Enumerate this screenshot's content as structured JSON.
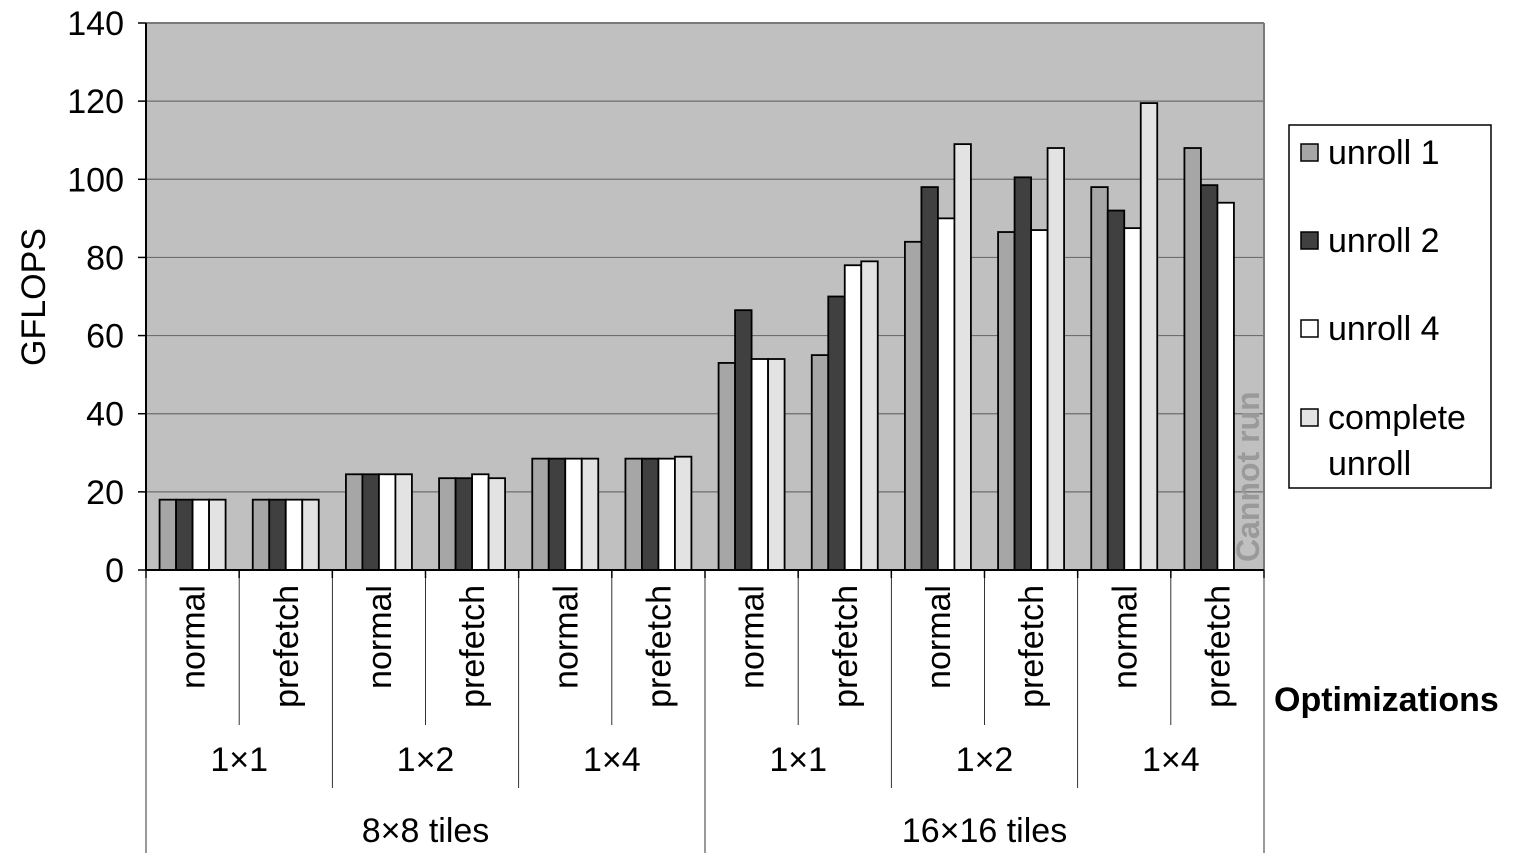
{
  "chart_data": {
    "type": "bar",
    "ylabel": "GFLOPS",
    "xlabel": "Optimizations",
    "ylim": [
      0,
      140
    ],
    "yticks": [
      "0",
      "20",
      "40",
      "60",
      "80",
      "100",
      "120",
      "140"
    ],
    "grid": true,
    "legend_position": "right",
    "categories": [
      {
        "opt": "normal",
        "unroll": "1×1",
        "tile": "8×8 tiles"
      },
      {
        "opt": "prefetch",
        "unroll": "1×1",
        "tile": "8×8 tiles"
      },
      {
        "opt": "normal",
        "unroll": "1×2",
        "tile": "8×8 tiles"
      },
      {
        "opt": "prefetch",
        "unroll": "1×2",
        "tile": "8×8 tiles"
      },
      {
        "opt": "normal",
        "unroll": "1×4",
        "tile": "8×8 tiles"
      },
      {
        "opt": "prefetch",
        "unroll": "1×4",
        "tile": "8×8 tiles"
      },
      {
        "opt": "normal",
        "unroll": "1×1",
        "tile": "16×16 tiles"
      },
      {
        "opt": "prefetch",
        "unroll": "1×1",
        "tile": "16×16 tiles"
      },
      {
        "opt": "normal",
        "unroll": "1×2",
        "tile": "16×16 tiles"
      },
      {
        "opt": "prefetch",
        "unroll": "1×2",
        "tile": "16×16 tiles"
      },
      {
        "opt": "normal",
        "unroll": "1×4",
        "tile": "16×16 tiles"
      },
      {
        "opt": "prefetch",
        "unroll": "1×4",
        "tile": "16×16 tiles"
      }
    ],
    "unroll_groups": [
      "1×1",
      "1×2",
      "1×4",
      "1×1",
      "1×2",
      "1×4"
    ],
    "tile_groups": [
      "8×8 tiles",
      "16×16 tiles"
    ],
    "series": [
      {
        "name": "unroll 1",
        "color": "#a6a6a6",
        "values": [
          18,
          18,
          24.5,
          23.5,
          28.5,
          28.5,
          53,
          55,
          84,
          86.5,
          98,
          108
        ]
      },
      {
        "name": "unroll 2",
        "color": "#404040",
        "values": [
          18,
          18,
          24.5,
          23.5,
          28.5,
          28.5,
          66.5,
          70,
          98,
          100.5,
          92,
          98.5
        ]
      },
      {
        "name": "unroll 4",
        "color": "#ffffff",
        "values": [
          18,
          18,
          24.5,
          24.5,
          28.5,
          28.5,
          54,
          78,
          90,
          87,
          87.5,
          94
        ]
      },
      {
        "name": "complete unroll",
        "color": "#e3e3e3",
        "values": [
          18,
          18,
          24.5,
          23.5,
          28.5,
          29,
          54,
          79,
          109,
          108,
          119.5,
          null
        ]
      }
    ],
    "legend_entries": [
      "unroll 1",
      "unroll 2",
      "unroll 4",
      "complete",
      "unroll"
    ],
    "annotation": "Cannot run",
    "plot_background": "#c0c0c0"
  }
}
